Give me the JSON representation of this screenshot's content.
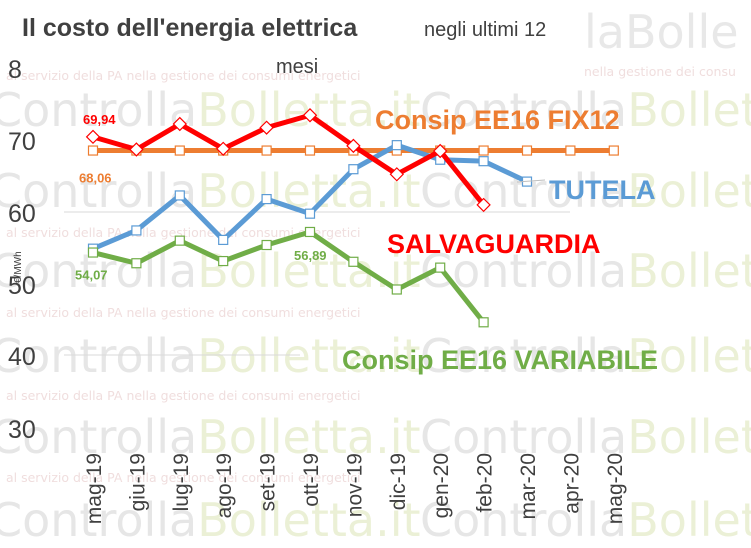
{
  "chart_data": {
    "type": "line",
    "title": "Il costo dell'energia elettrica",
    "subtitle": "negli ultimi 12 mesi",
    "ylabel": "€/MWh",
    "xlabel": "",
    "ylim": [
      30,
      80
    ],
    "yticks": [
      30,
      40,
      50,
      60,
      70,
      8
    ],
    "categories": [
      "mag-19",
      "giu-19",
      "lug-19",
      "ago-19",
      "set-19",
      "ott-19",
      "nov-19",
      "dic-19",
      "gen-20",
      "feb-20",
      "mar-20",
      "apr-20",
      "mag-20"
    ],
    "grid": false,
    "series": [
      {
        "name": "Consip EE16 FIX12",
        "color": "#ed7d31",
        "marker": "square",
        "values": [
          68.06,
          68.06,
          68.06,
          68.06,
          68.06,
          68.06,
          68.06,
          68.06,
          68.06,
          68.06,
          68.06,
          68.06,
          68.06
        ],
        "data_label": {
          "index": 0,
          "text": "68,06"
        }
      },
      {
        "name": "TUTELA",
        "color": "#5b9bd5",
        "marker": "square",
        "values": [
          54.6,
          57.1,
          61.9,
          55.8,
          61.4,
          59.4,
          65.5,
          68.8,
          66.8,
          66.6,
          63.8,
          null,
          null
        ]
      },
      {
        "name": "SALVAGUARDIA",
        "color": "#ff0000",
        "marker": "diamond",
        "values": [
          69.94,
          68.2,
          71.7,
          68.3,
          71.2,
          72.9,
          68.7,
          64.8,
          68.0,
          60.6,
          null,
          null,
          null
        ],
        "data_label": {
          "index": 0,
          "text": "69,94"
        }
      },
      {
        "name": "Consip EE16 VARIABILE",
        "color": "#70ad47",
        "marker": "square",
        "values": [
          54.07,
          52.6,
          55.7,
          52.9,
          55.1,
          56.89,
          52.8,
          49.0,
          52.0,
          44.5,
          null,
          null,
          null
        ],
        "data_labels": [
          {
            "index": 0,
            "text": "54,07"
          },
          {
            "index": 5,
            "text": "56,89"
          }
        ]
      }
    ]
  },
  "watermark": {
    "brand": "ControllaBolletta.it",
    "tagline": "al servizio della PA nella gestione dei consumi energetici",
    "tagline_short": "nella gestione dei consu",
    "brand_short": "laBolle"
  }
}
